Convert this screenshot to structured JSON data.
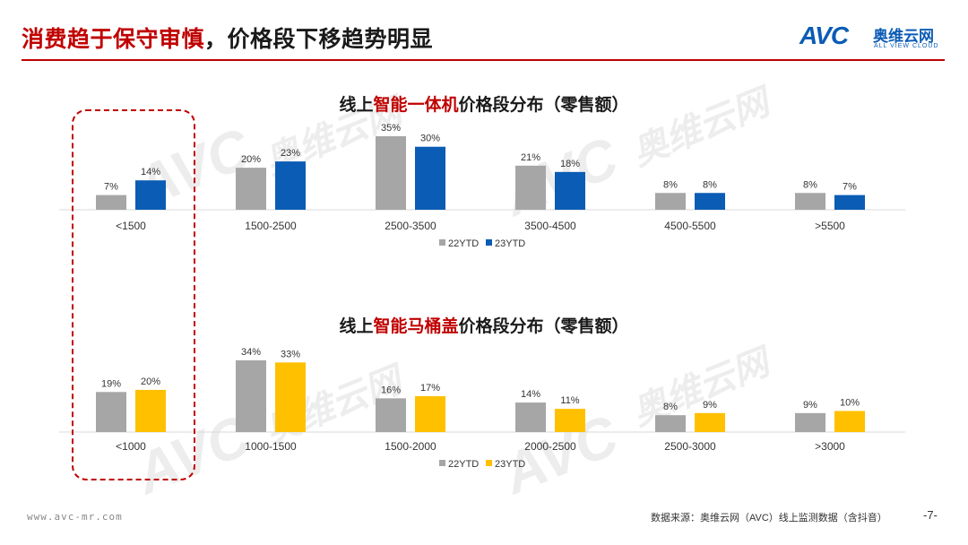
{
  "header": {
    "title_part1": "消费趋于保守审慎",
    "title_part2": "，价格段下移趋势明显"
  },
  "logo": {
    "mark": "AVC",
    "cn": "奥维云网",
    "en": "ALL VIEW CLOUD"
  },
  "watermark": {
    "mark": "AVC",
    "cn": "奥维云网",
    "en": "ALL VIEW CLOUD"
  },
  "colors": {
    "accent_red": "#c00000",
    "gray_series": "#a6a6a6",
    "blue_series": "#0b5cb5",
    "yellow_series": "#ffc000"
  },
  "chart_data": [
    {
      "type": "bar",
      "title_prefix": "线上",
      "title_highlight": "智能一体机",
      "title_suffix": "价格段分布（零售额）",
      "categories": [
        "<1500",
        "1500-2500",
        "2500-3500",
        "3500-4500",
        "4500-5500",
        ">5500"
      ],
      "series": [
        {
          "name": "22YTD",
          "values": [
            7,
            20,
            35,
            21,
            8,
            8
          ],
          "labels": [
            "7%",
            "20%",
            "35%",
            "21%",
            "8%",
            "8%"
          ],
          "color": "#a6a6a6"
        },
        {
          "name": "23YTD",
          "values": [
            14,
            23,
            30,
            18,
            8,
            7
          ],
          "labels": [
            "14%",
            "23%",
            "30%",
            "18%",
            "8%",
            "7%"
          ],
          "color": "#0b5cb5"
        }
      ],
      "legend_position": "bottom",
      "ylim": [
        0,
        35
      ]
    },
    {
      "type": "bar",
      "title_prefix": "线上",
      "title_highlight": "智能马桶盖",
      "title_suffix": "价格段分布（零售额）",
      "categories": [
        "<1000",
        "1000-1500",
        "1500-2000",
        "2000-2500",
        "2500-3000",
        ">3000"
      ],
      "series": [
        {
          "name": "22YTD",
          "values": [
            19,
            34,
            16,
            14,
            8,
            9
          ],
          "labels": [
            "19%",
            "34%",
            "16%",
            "14%",
            "8%",
            "9%"
          ],
          "color": "#a6a6a6"
        },
        {
          "name": "23YTD",
          "values": [
            20,
            33,
            17,
            11,
            9,
            10
          ],
          "labels": [
            "20%",
            "33%",
            "17%",
            "11%",
            "9%",
            "10%"
          ],
          "color": "#ffc000"
        }
      ],
      "legend_position": "bottom",
      "ylim": [
        0,
        34
      ]
    }
  ],
  "footer": {
    "url": "www.avc-mr.com",
    "source": "数据来源：奥维云网（AVC）线上监测数据（含抖音）",
    "page": "-7-"
  }
}
